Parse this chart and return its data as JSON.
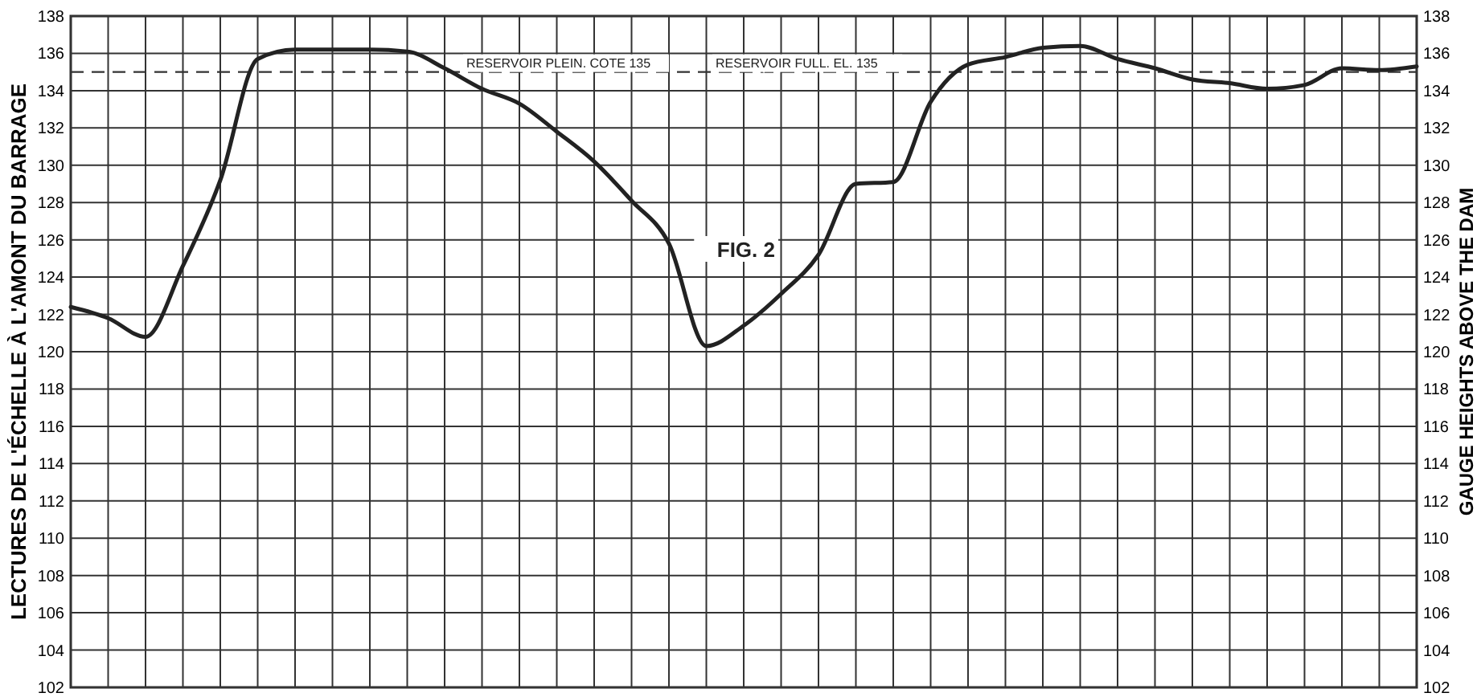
{
  "chart_data": {
    "type": "line",
    "ylabel": "LECTURES DE L'ÉCHELLE À L'AMONT DU BARRAGE",
    "y2label": "GAUGE HEIGHTS ABOVE THE DAM",
    "categories": [
      null,
      null,
      null,
      null,
      null,
      null,
      null,
      null,
      null,
      null,
      null,
      null,
      null,
      null,
      null,
      null,
      null,
      null,
      null,
      null,
      null,
      null,
      null,
      null,
      null,
      null,
      null,
      null,
      null,
      null,
      null,
      null,
      null,
      null,
      null,
      null,
      null
    ],
    "series": [
      {
        "color": "#222222",
        "values": [
          122.4,
          121.8,
          120.8,
          124.6,
          129.2,
          135.7,
          136.2,
          136.2,
          136.2,
          136.1,
          135.2,
          134.1,
          133.3,
          131.8,
          130.2,
          128.1,
          125.8,
          120.3,
          121.4,
          123.1,
          125.2,
          129.0,
          129.1,
          133.4,
          135.4,
          135.8,
          136.3,
          136.4,
          135.7,
          135.2,
          134.6,
          134.4,
          134.1,
          134.3,
          135.2,
          135.1,
          135.3
        ]
      }
    ],
    "ylim": [
      102,
      138
    ],
    "yticks": [
      102,
      104,
      106,
      108,
      110,
      112,
      114,
      116,
      118,
      120,
      122,
      124,
      126,
      128,
      130,
      132,
      134,
      136,
      138
    ],
    "y2lim": [
      102,
      138
    ],
    "y2ticks": [
      102,
      104,
      106,
      108,
      110,
      112,
      114,
      116,
      118,
      120,
      122,
      124,
      126,
      128,
      130,
      132,
      134,
      136,
      138
    ],
    "ref_lines": [
      {
        "axis": "y",
        "value": 135,
        "label": "RESERVOIR PLEIN. COTE 135",
        "line_style": "dashed"
      }
    ],
    "annotations": [
      {
        "text": "RESERVOIR FULL. EL. 135",
        "y": 135
      },
      "FIG. 2"
    ],
    "grid": true,
    "marker": "none",
    "line_style": "solid"
  }
}
